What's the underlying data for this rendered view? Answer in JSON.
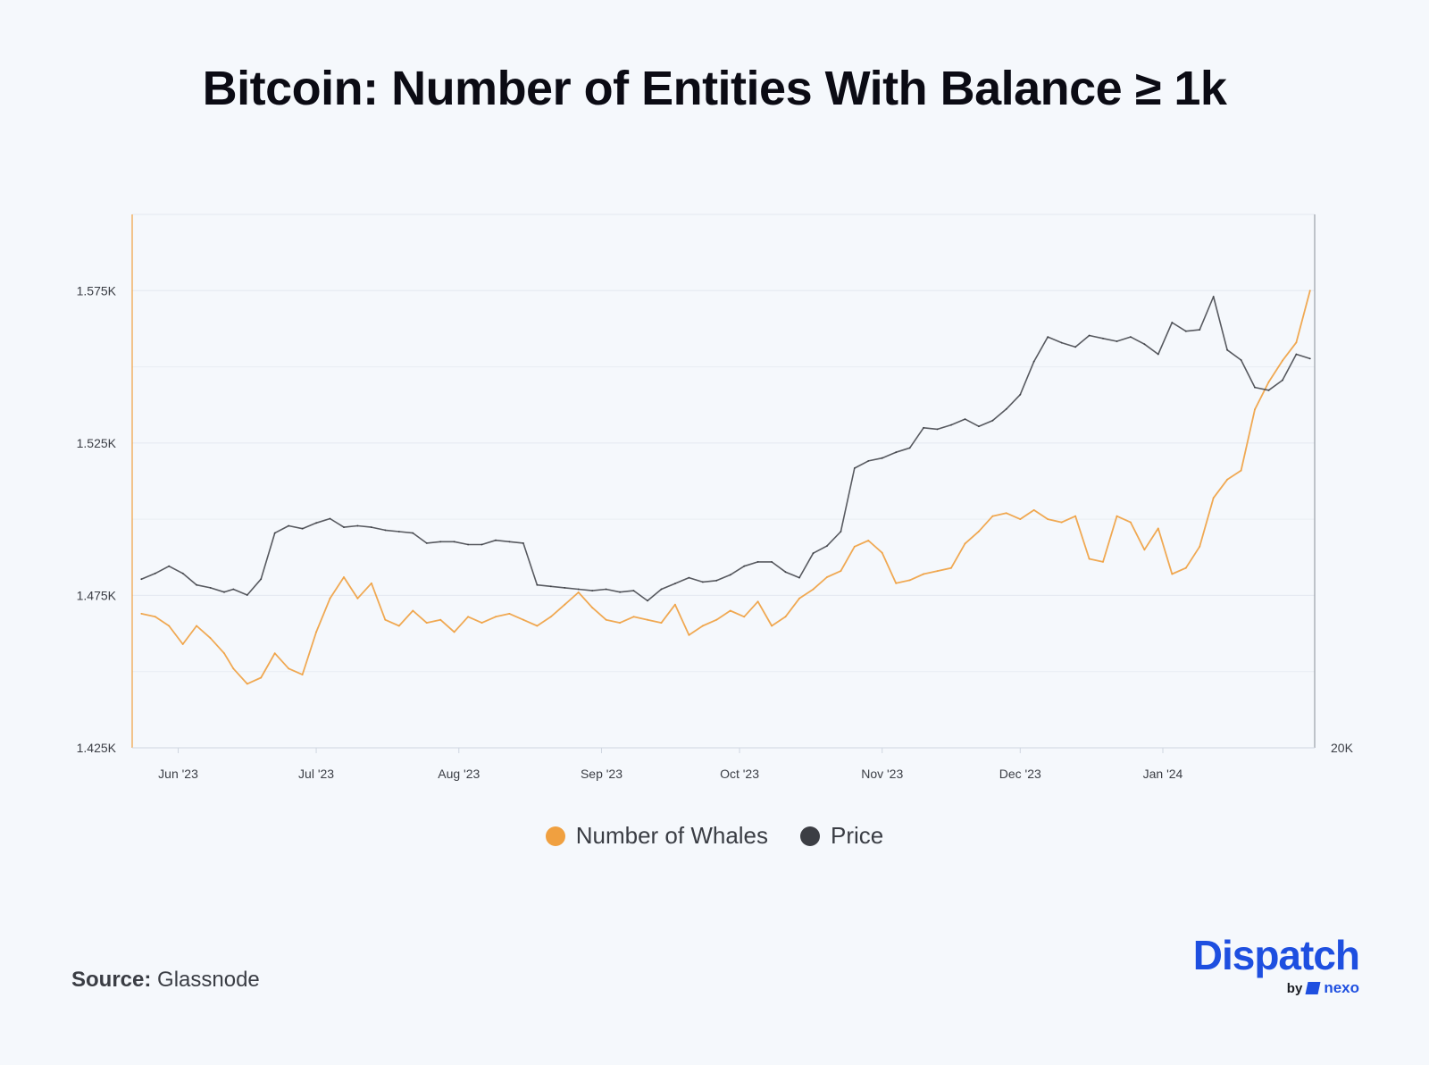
{
  "title": "Bitcoin: Number of Entities With Balance ≥ 1k",
  "source": {
    "label": "Source:",
    "value": "Glassnode"
  },
  "brand": {
    "name": "Dispatch",
    "by": "by",
    "partner": "nexo",
    "color": "#1e4fe0"
  },
  "chart_data": {
    "type": "line",
    "x_ticks": [
      "Jun '23",
      "Jul '23",
      "Aug '23",
      "Sep '23",
      "Oct '23",
      "Nov '23",
      "Dec '23",
      "Jan '24"
    ],
    "y_ticks_left": [
      "1.575K",
      "1.525K",
      "1.475K",
      "1.425K"
    ],
    "y_ticks_right": [
      "20K"
    ],
    "ylim_left": [
      1425,
      1600
    ],
    "grid": true,
    "legend_position": "bottom-center",
    "series": [
      {
        "name": "Number of Whales",
        "axis": "left",
        "color": "#f0a040",
        "x": [
          "2023-05-24",
          "2023-05-27",
          "2023-05-30",
          "2023-06-02",
          "2023-06-05",
          "2023-06-08",
          "2023-06-11",
          "2023-06-13",
          "2023-06-16",
          "2023-06-19",
          "2023-06-22",
          "2023-06-25",
          "2023-06-28",
          "2023-07-01",
          "2023-07-04",
          "2023-07-07",
          "2023-07-10",
          "2023-07-13",
          "2023-07-16",
          "2023-07-19",
          "2023-07-22",
          "2023-07-25",
          "2023-07-28",
          "2023-07-31",
          "2023-08-03",
          "2023-08-06",
          "2023-08-09",
          "2023-08-12",
          "2023-08-15",
          "2023-08-18",
          "2023-08-21",
          "2023-08-24",
          "2023-08-27",
          "2023-08-30",
          "2023-09-02",
          "2023-09-05",
          "2023-09-08",
          "2023-09-11",
          "2023-09-14",
          "2023-09-17",
          "2023-09-20",
          "2023-09-23",
          "2023-09-26",
          "2023-09-29",
          "2023-10-02",
          "2023-10-05",
          "2023-10-08",
          "2023-10-11",
          "2023-10-14",
          "2023-10-17",
          "2023-10-20",
          "2023-10-23",
          "2023-10-26",
          "2023-10-29",
          "2023-11-01",
          "2023-11-04",
          "2023-11-07",
          "2023-11-10",
          "2023-11-13",
          "2023-11-16",
          "2023-11-19",
          "2023-11-22",
          "2023-11-25",
          "2023-11-28",
          "2023-12-01",
          "2023-12-04",
          "2023-12-07",
          "2023-12-10",
          "2023-12-13",
          "2023-12-16",
          "2023-12-19",
          "2023-12-22",
          "2023-12-25",
          "2023-12-28",
          "2023-12-31",
          "2024-01-03",
          "2024-01-06",
          "2024-01-09",
          "2024-01-12",
          "2024-01-15",
          "2024-01-18",
          "2024-01-21",
          "2024-01-24",
          "2024-01-27",
          "2024-01-30",
          "2024-02-02"
        ],
        "values": [
          1469,
          1468,
          1465,
          1459,
          1465,
          1461,
          1456,
          1451,
          1446,
          1448,
          1456,
          1451,
          1449,
          1463,
          1474,
          1481,
          1474,
          1479,
          1467,
          1465,
          1470,
          1466,
          1467,
          1463,
          1468,
          1466,
          1468,
          1469,
          1467,
          1465,
          1468,
          1472,
          1476,
          1471,
          1467,
          1466,
          1468,
          1467,
          1466,
          1472,
          1462,
          1465,
          1467,
          1470,
          1468,
          1473,
          1465,
          1468,
          1474,
          1477,
          1481,
          1483,
          1491,
          1493,
          1489,
          1479,
          1480,
          1482,
          1483,
          1484,
          1492,
          1496,
          1501,
          1502,
          1500,
          1503,
          1500,
          1499,
          1501,
          1487,
          1486,
          1501,
          1499,
          1490,
          1497,
          1482,
          1484,
          1491,
          1507,
          1513,
          1516,
          1536,
          1545,
          1552,
          1558,
          1575
        ]
      },
      {
        "name": "Price",
        "axis": "right",
        "color": "#3c3e44",
        "x": [
          "2023-05-24",
          "2023-05-27",
          "2023-05-30",
          "2023-06-02",
          "2023-06-05",
          "2023-06-08",
          "2023-06-11",
          "2023-06-13",
          "2023-06-16",
          "2023-06-19",
          "2023-06-22",
          "2023-06-25",
          "2023-06-28",
          "2023-07-01",
          "2023-07-04",
          "2023-07-07",
          "2023-07-10",
          "2023-07-13",
          "2023-07-16",
          "2023-07-19",
          "2023-07-22",
          "2023-07-25",
          "2023-07-28",
          "2023-07-31",
          "2023-08-03",
          "2023-08-06",
          "2023-08-09",
          "2023-08-12",
          "2023-08-15",
          "2023-08-18",
          "2023-08-21",
          "2023-08-24",
          "2023-08-27",
          "2023-08-30",
          "2023-09-02",
          "2023-09-05",
          "2023-09-08",
          "2023-09-11",
          "2023-09-14",
          "2023-09-17",
          "2023-09-20",
          "2023-09-23",
          "2023-09-26",
          "2023-09-29",
          "2023-10-02",
          "2023-10-05",
          "2023-10-08",
          "2023-10-11",
          "2023-10-14",
          "2023-10-17",
          "2023-10-20",
          "2023-10-23",
          "2023-10-26",
          "2023-10-29",
          "2023-11-01",
          "2023-11-04",
          "2023-11-07",
          "2023-11-10",
          "2023-11-13",
          "2023-11-16",
          "2023-11-19",
          "2023-11-22",
          "2023-11-25",
          "2023-11-28",
          "2023-12-01",
          "2023-12-04",
          "2023-12-07",
          "2023-12-10",
          "2023-12-13",
          "2023-12-16",
          "2023-12-19",
          "2023-12-22",
          "2023-12-25",
          "2023-12-28",
          "2023-12-31",
          "2024-01-03",
          "2024-01-06",
          "2024-01-09",
          "2024-01-12",
          "2024-01-15",
          "2024-01-18",
          "2024-01-21",
          "2024-01-24",
          "2024-01-27",
          "2024-01-30",
          "2024-02-02"
        ],
        "values": [
          26700,
          27100,
          27600,
          27100,
          26300,
          26100,
          25800,
          26000,
          25600,
          26700,
          29900,
          30400,
          30200,
          30600,
          30900,
          30300,
          30400,
          30300,
          30100,
          30000,
          29900,
          29200,
          29300,
          29300,
          29100,
          29100,
          29400,
          29300,
          29200,
          26300,
          26200,
          26100,
          26000,
          25900,
          26000,
          25800,
          25900,
          25200,
          26000,
          26400,
          26800,
          26500,
          26600,
          27000,
          27600,
          27900,
          27900,
          27200,
          26800,
          28500,
          29000,
          30000,
          34400,
          34900,
          35100,
          35500,
          35800,
          37200,
          37100,
          37400,
          37800,
          37300,
          37700,
          38500,
          39500,
          41800,
          43500,
          43100,
          42800,
          43600,
          43400,
          43200,
          43500,
          43000,
          42300,
          44500,
          43900,
          44000,
          46300,
          42600,
          41900,
          40000,
          39800,
          40500,
          42300,
          42000
        ]
      }
    ]
  }
}
